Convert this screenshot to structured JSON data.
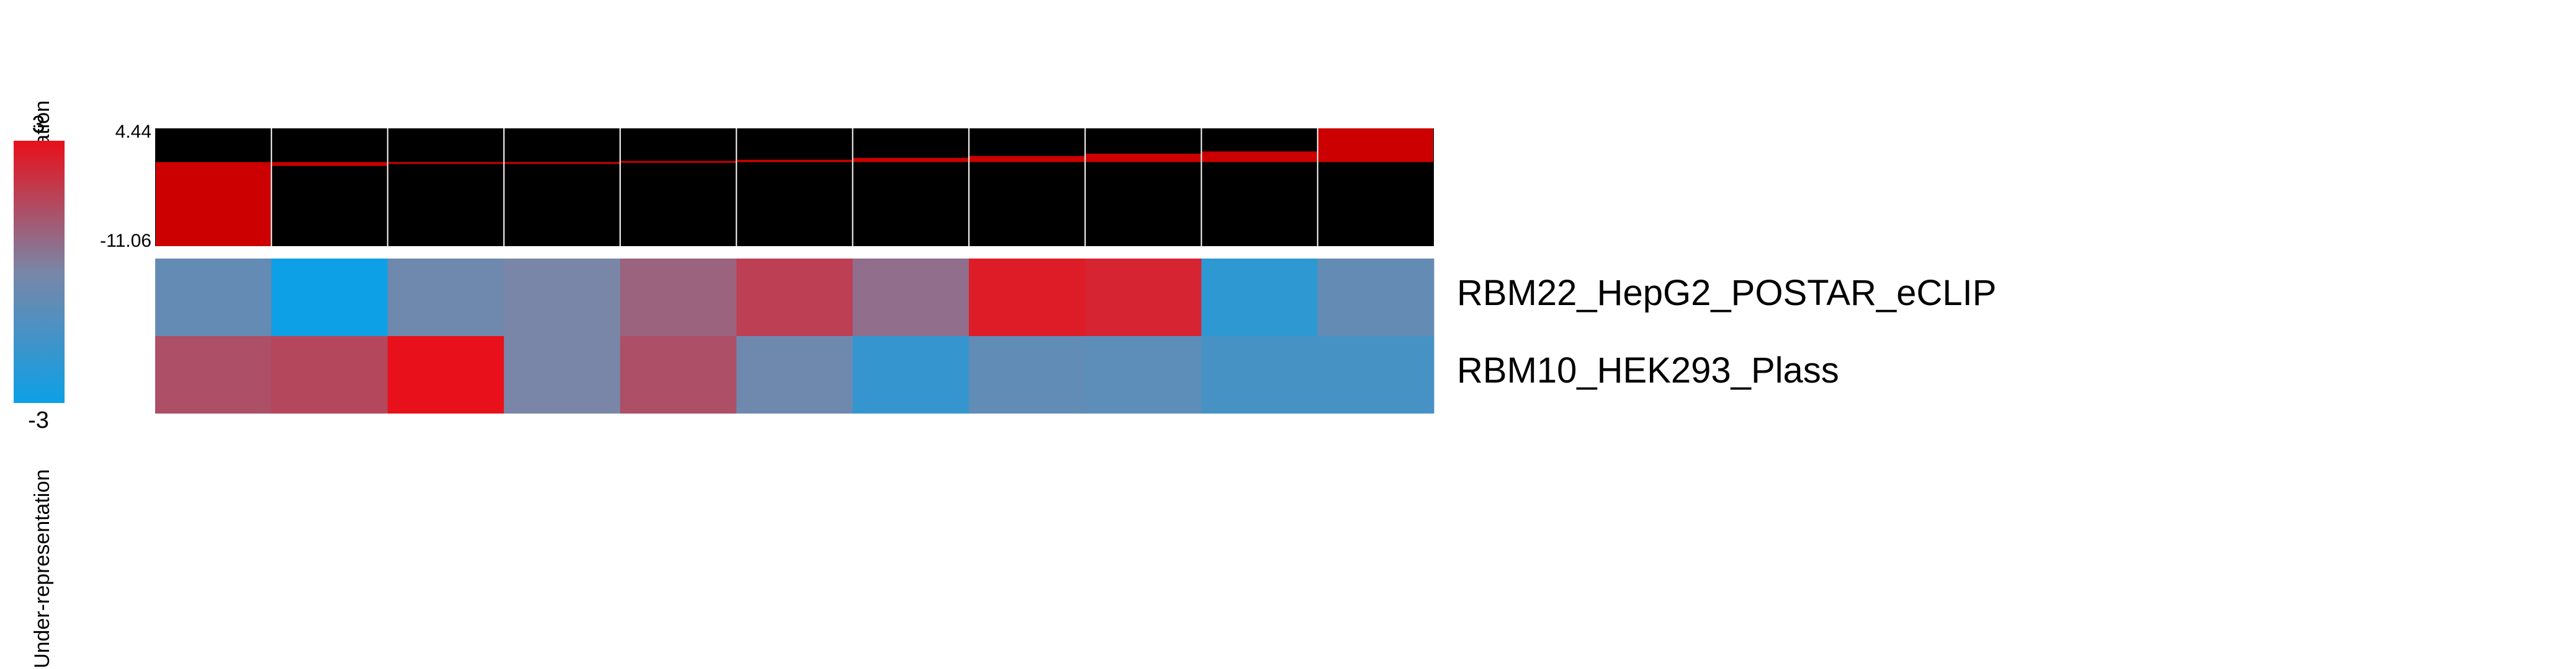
{
  "chart_data": {
    "type": "heatmap",
    "title": "",
    "legend": {
      "max_label": "3",
      "min_label": "-3",
      "top_caption": "Over-representation",
      "bottom_caption": "Under-representation",
      "range": [
        -3,
        3
      ],
      "colors": {
        "low": "#0da0e6",
        "mid": "#7a86a8",
        "high": "#e8101a"
      }
    },
    "track": {
      "max_label": "4.44",
      "min_label": "-11.06",
      "ylim": [
        -11.06,
        4.44
      ],
      "values": [
        -11.06,
        -0.5,
        -0.2,
        -0.05,
        0.15,
        0.3,
        0.55,
        0.8,
        1.1,
        1.4,
        4.44
      ],
      "background_color": "#000000",
      "fill_color": "#cc0000"
    },
    "rows": [
      {
        "label": "RBM22_HepG2_POSTAR_eCLIP",
        "values": [
          -0.6,
          -3.0,
          -0.3,
          0.0,
          0.9,
          1.8,
          0.6,
          2.7,
          2.5,
          -2.1,
          -0.6
        ]
      },
      {
        "label": "RBM10_HEK293_Plass",
        "values": [
          1.4,
          1.6,
          3.0,
          0.0,
          1.4,
          -0.3,
          -1.9,
          -0.7,
          -0.8,
          -1.4,
          -1.4
        ]
      }
    ]
  }
}
